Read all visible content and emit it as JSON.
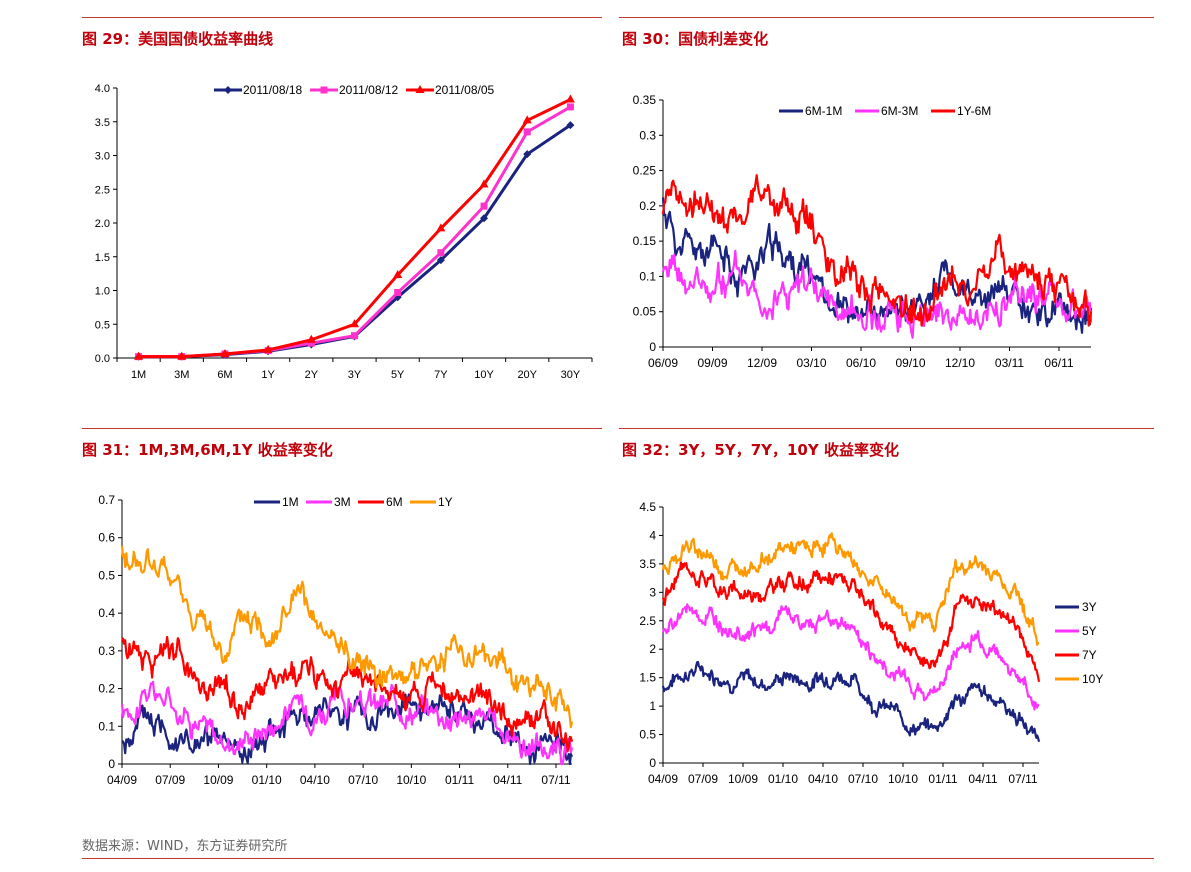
{
  "charts": [
    {
      "title": "图 29：美国国债收益率曲线",
      "chart_data": {
        "type": "line",
        "categories": [
          "1M",
          "3M",
          "6M",
          "1Y",
          "2Y",
          "3Y",
          "5Y",
          "7Y",
          "10Y",
          "20Y",
          "30Y"
        ],
        "ylim": [
          0,
          4.0
        ],
        "yticks": [
          "0.0",
          "0.5",
          "1.0",
          "1.5",
          "2.0",
          "2.5",
          "3.0",
          "3.5",
          "4.0"
        ],
        "legend": "top-center",
        "series": [
          {
            "name": "2011/08/18",
            "color": "#1a237e",
            "marker": "diamond",
            "values": [
              0.02,
              0.02,
              0.05,
              0.1,
              0.2,
              0.32,
              0.9,
              1.45,
              2.07,
              3.02,
              3.45
            ]
          },
          {
            "name": "2011/08/12",
            "color": "#ff33cc",
            "marker": "square",
            "values": [
              0.02,
              0.02,
              0.06,
              0.11,
              0.22,
              0.33,
              0.97,
              1.56,
              2.25,
              3.35,
              3.72
            ]
          },
          {
            "name": "2011/08/05",
            "color": "#ff0000",
            "marker": "triangle",
            "values": [
              0.02,
              0.02,
              0.06,
              0.12,
              0.27,
              0.5,
              1.23,
              1.92,
              2.57,
              3.52,
              3.83
            ]
          }
        ]
      }
    },
    {
      "title": "图 30：国债利差变化",
      "chart_data": {
        "type": "line",
        "xticks": [
          "06/09",
          "09/09",
          "12/09",
          "03/10",
          "06/10",
          "09/10",
          "12/10",
          "03/11",
          "06/11"
        ],
        "ylim": [
          0,
          0.35
        ],
        "yticks": [
          "0",
          "0.05",
          "0.1",
          "0.15",
          "0.2",
          "0.25",
          "0.3",
          "0.35"
        ],
        "legend": "top-center",
        "series": [
          {
            "name": "6M-1M",
            "color": "#1a237e",
            "seed": 11,
            "values": [
              0.2,
              0.14,
              0.13,
              0.12,
              0.11,
              0.12,
              0.14,
              0.12,
              0.1,
              0.08,
              0.05,
              0.04,
              0.03,
              0.05,
              0.06,
              0.1,
              0.08,
              0.05,
              0.07,
              0.08,
              0.06,
              0.05,
              0.05,
              0.04
            ]
          },
          {
            "name": "6M-3M",
            "color": "#ff33ff",
            "seed": 23,
            "values": [
              0.11,
              0.09,
              0.08,
              0.09,
              0.1,
              0.09,
              0.08,
              0.08,
              0.07,
              0.06,
              0.05,
              0.04,
              0.04,
              0.05,
              0.05,
              0.06,
              0.04,
              0.05,
              0.06,
              0.07,
              0.06,
              0.06,
              0.05,
              0.05
            ]
          },
          {
            "name": "1Y-6M",
            "color": "#ff0000",
            "seed": 37,
            "values": [
              0.18,
              0.19,
              0.2,
              0.2,
              0.18,
              0.23,
              0.2,
              0.18,
              0.17,
              0.13,
              0.1,
              0.08,
              0.07,
              0.06,
              0.05,
              0.09,
              0.1,
              0.09,
              0.12,
              0.11,
              0.1,
              0.09,
              0.08,
              0.05
            ]
          }
        ]
      }
    },
    {
      "title": "图 31：1M,3M,6M,1Y 收益率变化",
      "chart_data": {
        "type": "line",
        "xticks": [
          "04/09",
          "07/09",
          "10/09",
          "01/10",
          "04/10",
          "07/10",
          "10/10",
          "01/11",
          "04/11",
          "07/11"
        ],
        "ylim": [
          0,
          0.7
        ],
        "yticks": [
          "0",
          "0.1",
          "0.2",
          "0.3",
          "0.4",
          "0.5",
          "0.6",
          "0.7"
        ],
        "legend": "top-center",
        "series": [
          {
            "name": "1M",
            "color": "#1a237e",
            "seed": 5,
            "values": [
              0.05,
              0.12,
              0.1,
              0.04,
              0.04,
              0.02,
              0.08,
              0.12,
              0.15,
              0.15,
              0.14,
              0.15,
              0.14,
              0.14,
              0.12,
              0.09,
              0.06,
              0.03,
              0.02
            ]
          },
          {
            "name": "3M",
            "color": "#ff33ff",
            "seed": 17,
            "values": [
              0.13,
              0.19,
              0.17,
              0.12,
              0.05,
              0.08,
              0.11,
              0.16,
              0.15,
              0.16,
              0.15,
              0.16,
              0.15,
              0.14,
              0.12,
              0.1,
              0.06,
              0.04,
              0.02
            ]
          },
          {
            "name": "6M",
            "color": "#ff0000",
            "seed": 29,
            "values": [
              0.32,
              0.3,
              0.28,
              0.22,
              0.18,
              0.17,
              0.2,
              0.24,
              0.23,
              0.22,
              0.2,
              0.19,
              0.19,
              0.18,
              0.18,
              0.16,
              0.12,
              0.1,
              0.06
            ]
          },
          {
            "name": "1Y",
            "color": "#ff9900",
            "seed": 41,
            "values": [
              0.55,
              0.53,
              0.48,
              0.38,
              0.3,
              0.38,
              0.36,
              0.44,
              0.32,
              0.3,
              0.26,
              0.25,
              0.26,
              0.3,
              0.3,
              0.27,
              0.22,
              0.18,
              0.12
            ]
          }
        ]
      }
    },
    {
      "title": "图 32：3Y，5Y，7Y，10Y 收益率变化",
      "chart_data": {
        "type": "line",
        "xticks": [
          "04/09",
          "07/09",
          "10/09",
          "01/10",
          "04/10",
          "07/10",
          "10/10",
          "01/11",
          "04/11",
          "07/11"
        ],
        "ylim": [
          0,
          4.5
        ],
        "yticks": [
          "0",
          "0.5",
          "1",
          "1.5",
          "2",
          "2.5",
          "3",
          "3.5",
          "4",
          "4.5"
        ],
        "legend": "right",
        "series": [
          {
            "name": "3Y",
            "color": "#1a237e",
            "seed": 7,
            "values": [
              1.35,
              1.6,
              1.65,
              1.5,
              1.45,
              1.4,
              1.55,
              1.4,
              1.6,
              1.5,
              1.1,
              0.9,
              0.65,
              0.6,
              1.1,
              1.25,
              1.15,
              0.8,
              0.4
            ]
          },
          {
            "name": "5Y",
            "color": "#ff33ff",
            "seed": 19,
            "values": [
              2.2,
              2.7,
              2.6,
              2.4,
              2.4,
              2.35,
              2.6,
              2.4,
              2.6,
              2.4,
              1.9,
              1.6,
              1.3,
              1.2,
              1.9,
              2.2,
              1.9,
              1.6,
              0.95
            ]
          },
          {
            "name": "7Y",
            "color": "#ff0000",
            "seed": 31,
            "values": [
              2.9,
              3.4,
              3.3,
              3.0,
              3.0,
              3.05,
              3.25,
              3.1,
              3.3,
              3.1,
              2.6,
              2.3,
              1.9,
              1.8,
              2.7,
              2.9,
              2.7,
              2.4,
              1.5
            ]
          },
          {
            "name": "10Y",
            "color": "#ff9900",
            "seed": 43,
            "values": [
              3.3,
              3.8,
              3.7,
              3.4,
              3.5,
              3.6,
              3.8,
              3.7,
              3.9,
              3.6,
              3.2,
              2.9,
              2.5,
              2.5,
              3.4,
              3.5,
              3.3,
              3.0,
              2.1
            ]
          }
        ]
      }
    }
  ],
  "footer": "数据来源：WIND，东方证券研究所"
}
